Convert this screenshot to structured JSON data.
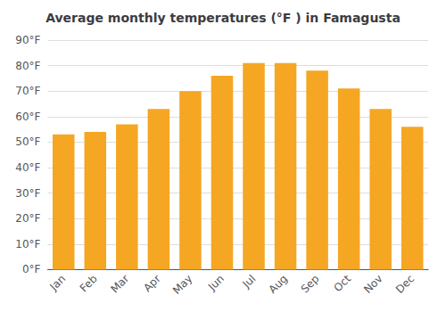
{
  "chart_data": {
    "type": "bar",
    "title": "Average monthly temperatures (°F ) in Famagusta",
    "categories": [
      "Jan",
      "Feb",
      "Mar",
      "Apr",
      "May",
      "Jun",
      "Jul",
      "Aug",
      "Sep",
      "Oct",
      "Nov",
      "Dec"
    ],
    "values": [
      53,
      54,
      57,
      63,
      70,
      76,
      81,
      81,
      78,
      71,
      63,
      56
    ],
    "color": "#F5A623",
    "ylim": [
      0,
      90
    ],
    "yticks": [
      {
        "value": 0,
        "label": "0°F"
      },
      {
        "value": 10,
        "label": "10°F"
      },
      {
        "value": 20,
        "label": "20°F"
      },
      {
        "value": 30,
        "label": "30°F"
      },
      {
        "value": 40,
        "label": "40°F"
      },
      {
        "value": 50,
        "label": "50°F"
      },
      {
        "value": 60,
        "label": "60°F"
      },
      {
        "value": 70,
        "label": "70°F"
      },
      {
        "value": 80,
        "label": "80°F"
      },
      {
        "value": 90,
        "label": "90°F"
      }
    ],
    "grid": true
  }
}
